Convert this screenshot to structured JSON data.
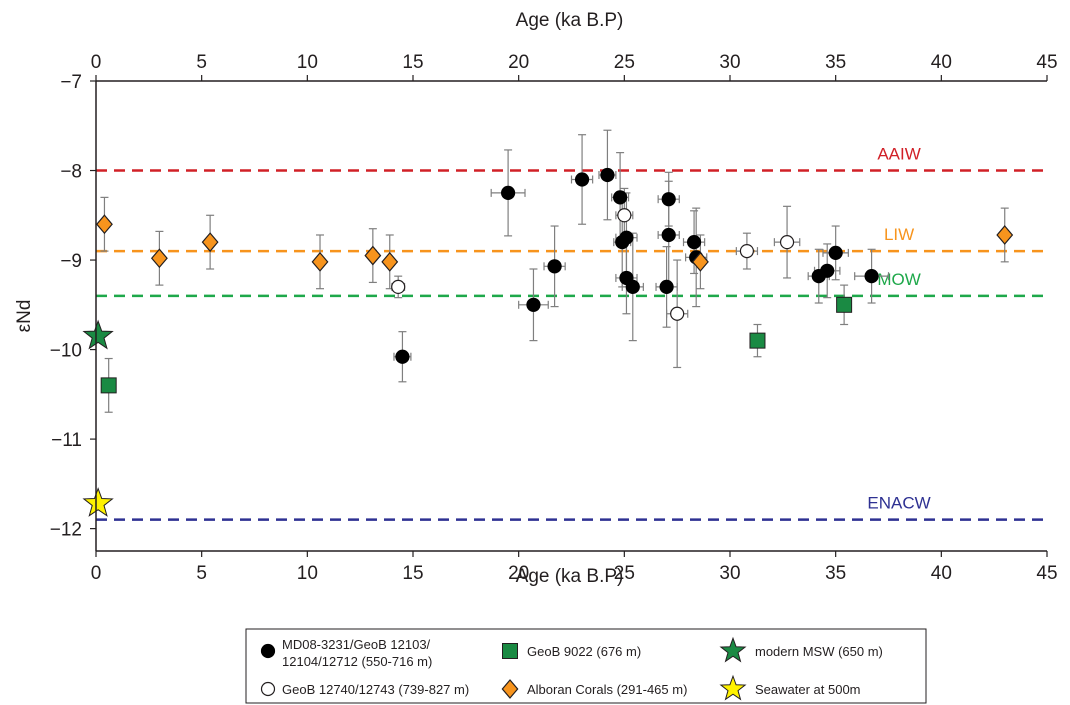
{
  "chart_data": {
    "type": "scatter",
    "title": "",
    "xlabel": "Age (ka B.P)",
    "xlabel_top": "Age (ka B.P)",
    "ylabel": "εNd",
    "xlim": [
      0,
      45
    ],
    "ylim": [
      -12.25,
      -7
    ],
    "xticks": [
      0,
      5,
      10,
      15,
      20,
      25,
      30,
      35,
      40,
      45
    ],
    "yticks": [
      -7,
      -8,
      -9,
      -10,
      -11,
      -12
    ],
    "grid": false,
    "legend_position": "bottom",
    "reference_lines": [
      {
        "label": "AAIW",
        "y": -8.0,
        "color": "#d12027",
        "label_x": 38.0
      },
      {
        "label": "LIW",
        "y": -8.9,
        "color": "#f7941d",
        "label_x": 38.0
      },
      {
        "label": "MOW",
        "y": -9.4,
        "color": "#1ea84a",
        "label_x": 38.0
      },
      {
        "label": "ENACW",
        "y": -11.9,
        "color": "#2e3192",
        "label_x": 38.0
      }
    ],
    "series": [
      {
        "name": "MD08-3231/GeoB 12103/ 12104/12712 (550-716 m)",
        "legend_lines": [
          "MD08-3231/GeoB 12103/",
          "12104/12712 (550-716 m)"
        ],
        "marker": "circle",
        "fill": "#000000",
        "stroke": "#000000",
        "points": [
          {
            "x": 14.5,
            "y": -10.08,
            "xerr": 0.4,
            "yerr": 0.28
          },
          {
            "x": 19.5,
            "y": -8.25,
            "xerr": 0.8,
            "yerr": 0.48
          },
          {
            "x": 20.7,
            "y": -9.5,
            "xerr": 0.7,
            "yerr": 0.4
          },
          {
            "x": 21.7,
            "y": -9.07,
            "xerr": 0.5,
            "yerr": 0.45
          },
          {
            "x": 23.0,
            "y": -8.1,
            "xerr": 0.5,
            "yerr": 0.5
          },
          {
            "x": 24.2,
            "y": -8.05,
            "xerr": 0.4,
            "yerr": 0.5
          },
          {
            "x": 24.8,
            "y": -8.3,
            "xerr": 0.4,
            "yerr": 0.5
          },
          {
            "x": 24.9,
            "y": -8.8,
            "xerr": 0.4,
            "yerr": 0.5
          },
          {
            "x": 25.1,
            "y": -8.75,
            "xerr": 0.5,
            "yerr": 0.5
          },
          {
            "x": 25.1,
            "y": -9.2,
            "xerr": 0.5,
            "yerr": 0.4
          },
          {
            "x": 25.4,
            "y": -9.3,
            "xerr": 0.5,
            "yerr": 0.6
          },
          {
            "x": 27.0,
            "y": -9.3,
            "xerr": 0.5,
            "yerr": 0.45
          },
          {
            "x": 27.1,
            "y": -8.32,
            "xerr": 0.5,
            "yerr": 0.3
          },
          {
            "x": 27.1,
            "y": -8.72,
            "xerr": 0.5,
            "yerr": 0.6
          },
          {
            "x": 28.3,
            "y": -8.8,
            "xerr": 0.5,
            "yerr": 0.35
          },
          {
            "x": 28.4,
            "y": -8.97,
            "xerr": 0.5,
            "yerr": 0.55
          },
          {
            "x": 34.2,
            "y": -9.18,
            "xerr": 0.5,
            "yerr": 0.3
          },
          {
            "x": 34.6,
            "y": -9.12,
            "xerr": 0.6,
            "yerr": 0.3
          },
          {
            "x": 35.0,
            "y": -8.92,
            "xerr": 0.6,
            "yerr": 0.3
          },
          {
            "x": 36.7,
            "y": -9.18,
            "xerr": 0.8,
            "yerr": 0.3
          }
        ]
      },
      {
        "name": "GeoB 12740/12743 (739-827 m)",
        "legend_lines": [
          "GeoB 12740/12743 (739-827 m)"
        ],
        "marker": "circle",
        "fill": "#ffffff",
        "stroke": "#231f20",
        "points": [
          {
            "x": 14.3,
            "y": -9.3,
            "xerr": 0.3,
            "yerr": 0.12
          },
          {
            "x": 25.0,
            "y": -8.5,
            "xerr": 0.4,
            "yerr": 0.3
          },
          {
            "x": 27.5,
            "y": -9.6,
            "xerr": 0.5,
            "yerr": 0.6
          },
          {
            "x": 30.8,
            "y": -8.9,
            "xerr": 0.5,
            "yerr": 0.2
          },
          {
            "x": 32.7,
            "y": -8.8,
            "xerr": 0.6,
            "yerr": 0.4
          }
        ]
      },
      {
        "name": "GeoB 9022 (676 m)",
        "legend_lines": [
          "GeoB 9022 (676 m)"
        ],
        "marker": "square",
        "fill": "#1a8a43",
        "stroke": "#231f20",
        "points": [
          {
            "x": 0.6,
            "y": -10.4,
            "xerr": 0,
            "yerr": 0.3
          },
          {
            "x": 31.3,
            "y": -9.9,
            "xerr": 0,
            "yerr": 0.18
          },
          {
            "x": 35.4,
            "y": -9.5,
            "xerr": 0,
            "yerr": 0.22
          }
        ]
      },
      {
        "name": "Alboran Corals (291-465 m)",
        "legend_lines": [
          "Alboran Corals (291-465 m)"
        ],
        "marker": "diamond",
        "fill": "#f7941d",
        "stroke": "#231f20",
        "points": [
          {
            "x": 0.4,
            "y": -8.6,
            "xerr": 0,
            "yerr": 0.3
          },
          {
            "x": 3.0,
            "y": -8.98,
            "xerr": 0,
            "yerr": 0.3
          },
          {
            "x": 5.4,
            "y": -8.8,
            "xerr": 0,
            "yerr": 0.3
          },
          {
            "x": 10.6,
            "y": -9.02,
            "xerr": 0,
            "yerr": 0.3
          },
          {
            "x": 13.1,
            "y": -8.95,
            "xerr": 0,
            "yerr": 0.3
          },
          {
            "x": 13.9,
            "y": -9.02,
            "xerr": 0,
            "yerr": 0.3
          },
          {
            "x": 28.6,
            "y": -9.02,
            "xerr": 0,
            "yerr": 0.3
          },
          {
            "x": 43.0,
            "y": -8.72,
            "xerr": 0,
            "yerr": 0.3
          }
        ]
      },
      {
        "name": "modern MSW (650 m)",
        "legend_lines": [
          "modern MSW (650 m)"
        ],
        "marker": "star",
        "fill": "#1a8a43",
        "stroke": "#231f20",
        "points": [
          {
            "x": 0.1,
            "y": -9.85,
            "xerr": 0,
            "yerr": 0
          }
        ]
      },
      {
        "name": "Seawater at 500m",
        "legend_lines": [
          "Seawater at 500m"
        ],
        "marker": "star",
        "fill": "#fff200",
        "stroke": "#231f20",
        "points": [
          {
            "x": 0.1,
            "y": -11.72,
            "xerr": 0,
            "yerr": 0
          }
        ]
      }
    ]
  }
}
